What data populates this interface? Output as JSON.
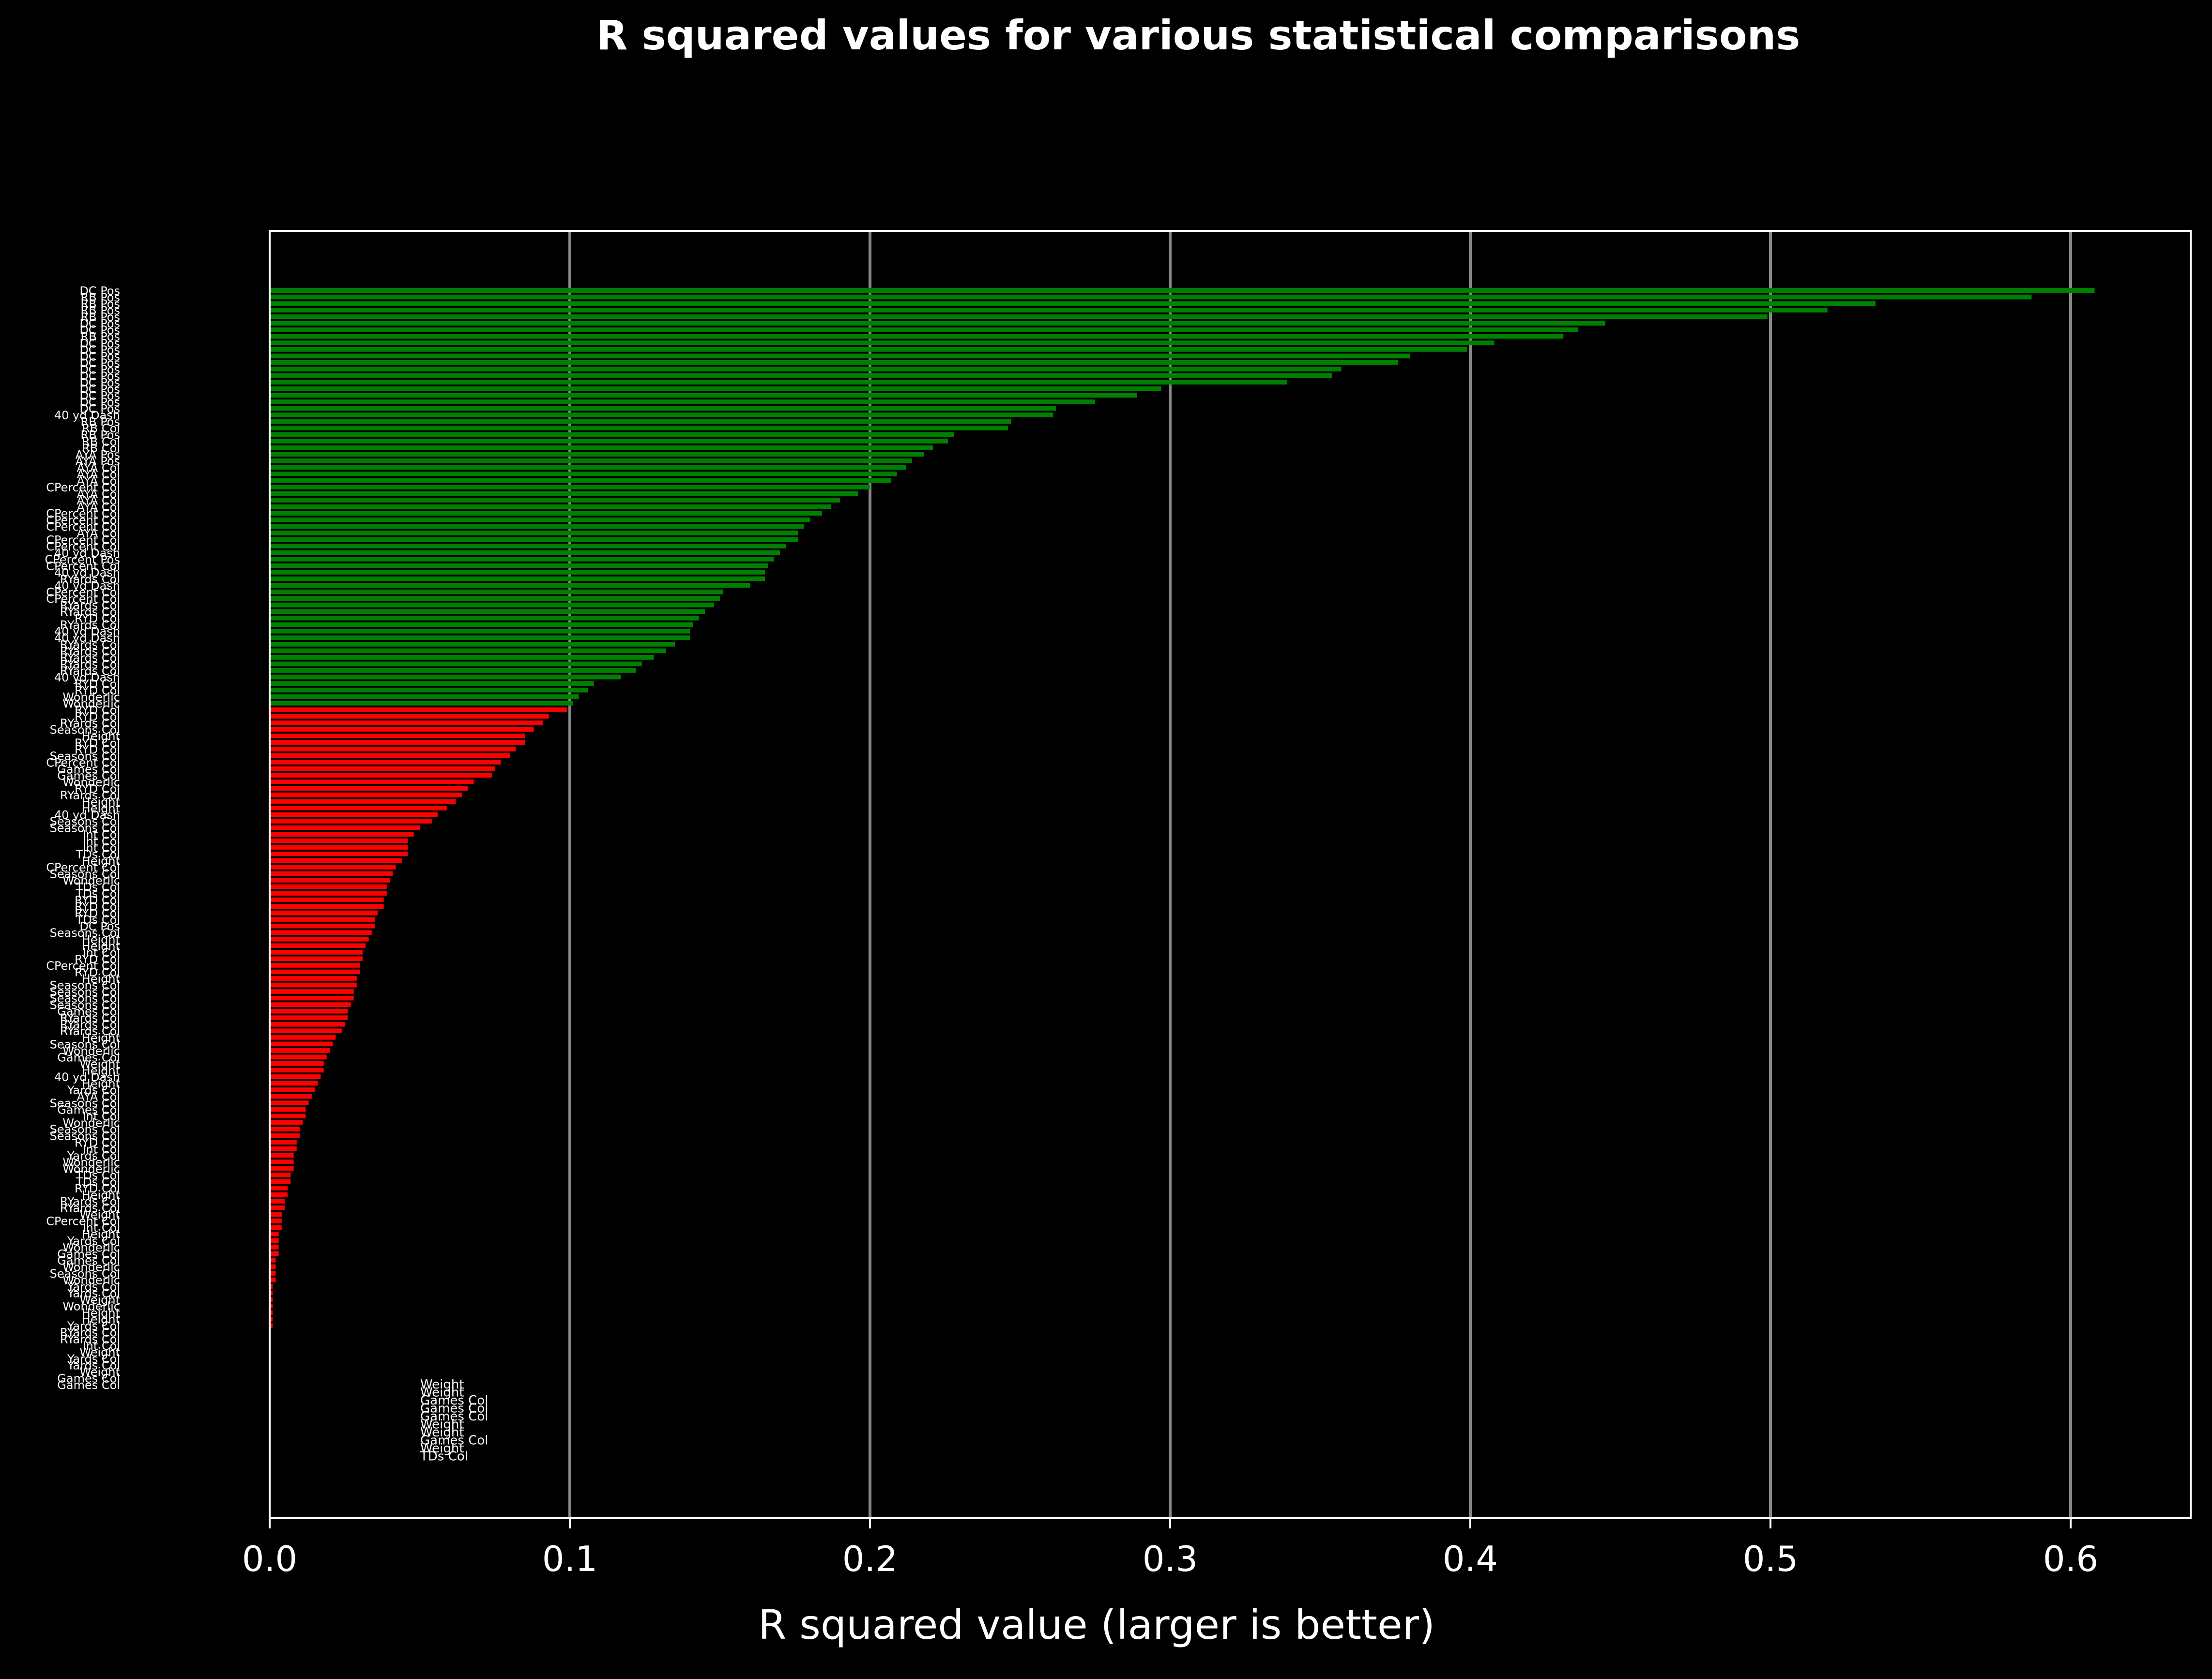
{
  "colors": {
    "background": "#000000",
    "good_bar": "#008000",
    "bad_bar": "#ff0000",
    "text": "#ffffff",
    "grid": "#a9a9a9"
  },
  "chart_data": {
    "type": "bar",
    "orientation": "horizontal",
    "title": "R squared values for various statistical comparisons",
    "xlabel": "R squared value (larger is better)",
    "ylabel": "",
    "xlim": [
      0,
      0.64
    ],
    "xticks": [
      "0.0",
      "0.1",
      "0.2",
      "0.3",
      "0.4",
      "0.5",
      "0.6"
    ],
    "grid": "vertical",
    "threshold": 0.1,
    "categories": [
      "DC Pos",
      "RB Pos",
      "RB Pos",
      "RB Pos",
      "RB Pos",
      "DC Pos",
      "DC Pos",
      "RB Pos",
      "DC Pos",
      "DC Pos",
      "DC Pos",
      "DC Pos",
      "DC Pos",
      "DC Pos",
      "DC Pos",
      "DC Pos",
      "DC Pos",
      "DC Pos",
      "DC Pos",
      "40 yd Dash",
      "RB Pos",
      "RB Col",
      "RB Pos",
      "RB Col",
      "RB Col",
      "AYA Pos",
      "AYA Pos",
      "AYA Col",
      "AYA Col",
      "AYA Col",
      "CPercent Col",
      "AYA Col",
      "AYA Col",
      "AYA Col",
      "CPercent Col",
      "CPercent Col",
      "CPercent Col",
      "AYA Col",
      "CPercent Col",
      "CPercent Col",
      "40 yd Dash",
      "CPercent Pos",
      "CPercent Col",
      "40 yd Dash",
      "RYards Col",
      "40 yd Dash",
      "CPercent Col",
      "CPercent Col",
      "RYards Col",
      "RYards Col",
      "RYD Col",
      "RYards Col",
      "40 yd Dash",
      "40 yd Dash",
      "RYards Col",
      "RYards Col",
      "RYards Col",
      "RYards Col",
      "RYards Col",
      "40 yd Dash",
      "RYD Col",
      "RYD Col",
      "Wonderlic",
      "Wonderlic",
      "RYD Col",
      "RYD Col",
      "RYards Col",
      "Seasons Col",
      "Height",
      "RYD Col",
      "RYD Col",
      "Seasons Col",
      "CPercent Col",
      "Games Col",
      "Games Col",
      "Wonderlic",
      "RYD Col",
      "RYards Col",
      "Height",
      "Height",
      "40 yd Dash",
      "Seasons Col",
      "Seasons Col",
      "Int Col",
      "Int Col",
      "Int Col",
      "TDs Col",
      "Height",
      "CPercent Col",
      "Seasons Col",
      "Wonderlic",
      "TDs Col",
      "TDs Col",
      "RYD Col",
      "RYD Col",
      "RYD Col",
      "TDs Col",
      "DC Pos",
      "Seasons Col",
      "Height",
      "Height",
      "Int Col",
      "RYD Col",
      "CPercent Col",
      "RYD Col",
      "Height",
      "Seasons Col",
      "Seasons Col",
      "Seasons Col",
      "Seasons Col",
      "Games Col",
      "RYards Col",
      "RYards Col",
      "RYards Col",
      "Height",
      "Seasons Col",
      "Wonderlic",
      "Games Col",
      "Weight",
      "Height",
      "40 yd Dash",
      "Height",
      "Yards Col",
      "AYA Col",
      "Seasons Col",
      "Games Col",
      "Int Col",
      "Wonderlic",
      "Seasons Col",
      "Seasons Col",
      "RYD Col",
      "Int Col",
      "Yards Col",
      "Wonderlic",
      "Wonderlic",
      "TDs Col",
      "TDs Col",
      "RYD Col",
      "Height",
      "RYards Col",
      "RYards Col",
      "Weight",
      "CPercent Col",
      "Int Col",
      "Height",
      "Yards Col",
      "Wonderlic",
      "Games Col",
      "Games Col",
      "Wonderlic",
      "Seasons Col",
      "Wonderlic",
      "Yards Col",
      "Yards Col",
      "Weight",
      "Wonderlic",
      "Height",
      "Height",
      "Yards Col",
      "RYards Col",
      "RYards Col",
      "Int Col",
      "Weight",
      "Yards Col",
      "Yards Col",
      "Weight",
      "Games Col",
      "Games Col",
      "Weight",
      "Weight",
      "Games Col",
      "Games Col",
      "Games Col",
      "Weight",
      "Weight",
      "Games Col",
      "Weight",
      "TDs Col"
    ],
    "values": [
      0.608,
      0.587,
      0.535,
      0.519,
      0.499,
      0.445,
      0.436,
      0.431,
      0.408,
      0.399,
      0.38,
      0.376,
      0.357,
      0.354,
      0.339,
      0.297,
      0.289,
      0.275,
      0.262,
      0.261,
      0.247,
      0.246,
      0.228,
      0.226,
      0.221,
      0.218,
      0.214,
      0.212,
      0.209,
      0.207,
      0.2,
      0.196,
      0.19,
      0.187,
      0.184,
      0.18,
      0.178,
      0.176,
      0.176,
      0.172,
      0.17,
      0.168,
      0.166,
      0.165,
      0.165,
      0.16,
      0.151,
      0.15,
      0.148,
      0.145,
      0.143,
      0.141,
      0.14,
      0.14,
      0.135,
      0.132,
      0.128,
      0.124,
      0.122,
      0.117,
      0.108,
      0.106,
      0.103,
      0.101,
      0.099,
      0.093,
      0.091,
      0.088,
      0.085,
      0.085,
      0.082,
      0.08,
      0.077,
      0.075,
      0.074,
      0.068,
      0.066,
      0.064,
      0.062,
      0.059,
      0.056,
      0.054,
      0.05,
      0.048,
      0.046,
      0.046,
      0.046,
      0.044,
      0.042,
      0.041,
      0.04,
      0.039,
      0.039,
      0.038,
      0.038,
      0.036,
      0.035,
      0.035,
      0.034,
      0.033,
      0.032,
      0.031,
      0.031,
      0.03,
      0.03,
      0.029,
      0.029,
      0.028,
      0.028,
      0.027,
      0.026,
      0.026,
      0.025,
      0.024,
      0.022,
      0.021,
      0.02,
      0.019,
      0.018,
      0.018,
      0.017,
      0.016,
      0.015,
      0.014,
      0.013,
      0.012,
      0.012,
      0.011,
      0.01,
      0.01,
      0.009,
      0.009,
      0.008,
      0.008,
      0.008,
      0.007,
      0.007,
      0.006,
      0.006,
      0.005,
      0.005,
      0.004,
      0.004,
      0.004,
      0.003,
      0.003,
      0.003,
      0.003,
      0.002,
      0.002,
      0.002,
      0.002,
      0.001,
      0.001,
      0.001,
      0.001,
      0.001,
      0.001,
      0.001,
      0.0,
      0.0,
      0.0,
      0.0,
      0.0,
      0.0,
      0.0,
      0.0,
      0.0,
      0.0,
      0.0,
      0.0,
      0.0,
      0.0,
      0.0,
      0.0,
      0.0,
      0.0,
      0.0
    ]
  }
}
